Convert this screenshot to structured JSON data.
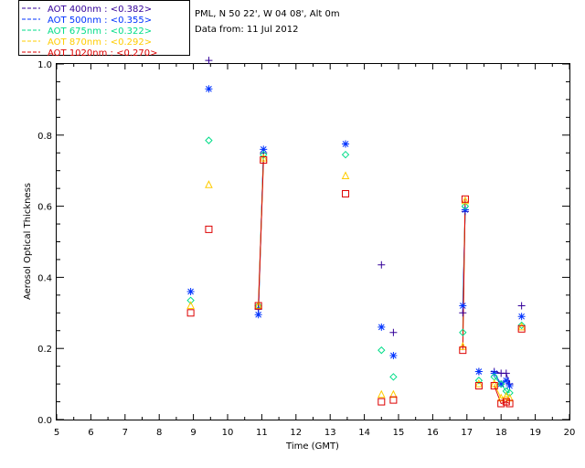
{
  "header": {
    "location": "PML, N 50 22', W 04 08', Alt 0m",
    "date": "Data from: 11 Jul 2012"
  },
  "chart_data": {
    "type": "scatter",
    "title": "",
    "xlabel": "Time (GMT)",
    "ylabel": "Aerosol Optical Thickness",
    "xlim": [
      5,
      20
    ],
    "ylim": [
      0,
      1.0
    ],
    "xticks": [
      5,
      6,
      7,
      8,
      9,
      10,
      11,
      12,
      13,
      14,
      15,
      16,
      17,
      18,
      19,
      20
    ],
    "yticks": [
      0.0,
      0.2,
      0.4,
      0.6,
      0.8,
      1.0
    ],
    "ytick_labels": [
      "0.0",
      "0.2",
      "0.4",
      "0.6",
      "0.8",
      "1.0"
    ],
    "grid": false,
    "legend_position": "top-left (outside plot)",
    "series": [
      {
        "name": "AOT  400nm : <0.382>",
        "color": "#330099",
        "marker": "plus",
        "points": [
          [
            9.45,
            1.01
          ],
          [
            10.9,
            0.31
          ],
          [
            11.05,
            0.75
          ],
          [
            13.45,
            0.775
          ],
          [
            14.5,
            0.435
          ],
          [
            14.85,
            0.245
          ],
          [
            16.88,
            0.3
          ],
          [
            16.95,
            0.585
          ],
          [
            17.35,
            0.135
          ],
          [
            17.8,
            0.135
          ],
          [
            18.0,
            0.13
          ],
          [
            18.15,
            0.13
          ],
          [
            18.25,
            0.1
          ],
          [
            18.6,
            0.32
          ]
        ]
      },
      {
        "name": "AOT  500nm : <0.355>",
        "color": "#0033ff",
        "marker": "asterisk",
        "points": [
          [
            8.92,
            0.36
          ],
          [
            9.45,
            0.93
          ],
          [
            10.9,
            0.295
          ],
          [
            11.05,
            0.76
          ],
          [
            13.45,
            0.775
          ],
          [
            14.5,
            0.26
          ],
          [
            14.85,
            0.18
          ],
          [
            16.88,
            0.32
          ],
          [
            16.95,
            0.59
          ],
          [
            17.35,
            0.135
          ],
          [
            17.8,
            0.13
          ],
          [
            18.0,
            0.1
          ],
          [
            18.15,
            0.11
          ],
          [
            18.25,
            0.095
          ],
          [
            18.6,
            0.29
          ]
        ]
      },
      {
        "name": "AOT  675nm : <0.322>",
        "color": "#00dd88",
        "marker": "diamond",
        "points": [
          [
            8.92,
            0.335
          ],
          [
            9.45,
            0.785
          ],
          [
            10.9,
            0.32
          ],
          [
            11.05,
            0.745
          ],
          [
            13.45,
            0.745
          ],
          [
            14.5,
            0.195
          ],
          [
            14.85,
            0.12
          ],
          [
            16.88,
            0.245
          ],
          [
            16.95,
            0.6
          ],
          [
            17.35,
            0.11
          ],
          [
            17.8,
            0.12
          ],
          [
            18.0,
            0.1
          ],
          [
            18.15,
            0.08
          ],
          [
            18.25,
            0.075
          ],
          [
            18.6,
            0.265
          ]
        ]
      },
      {
        "name": "AOT  870nm : <0.292>",
        "color": "#ffcc00",
        "marker": "triangle",
        "points": [
          [
            8.92,
            0.32
          ],
          [
            9.45,
            0.66
          ],
          [
            10.9,
            0.32
          ],
          [
            11.05,
            0.735
          ],
          [
            13.45,
            0.685
          ],
          [
            14.5,
            0.07
          ],
          [
            14.85,
            0.07
          ],
          [
            16.88,
            0.205
          ],
          [
            16.95,
            0.615
          ],
          [
            17.35,
            0.1
          ],
          [
            17.8,
            0.1
          ],
          [
            18.0,
            0.06
          ],
          [
            18.15,
            0.065
          ],
          [
            18.25,
            0.06
          ],
          [
            18.6,
            0.26
          ]
        ]
      },
      {
        "name": "AOT 1020nm : <0.270>",
        "color": "#dd0000",
        "marker": "square",
        "points": [
          [
            8.92,
            0.3
          ],
          [
            9.45,
            0.535
          ],
          [
            10.9,
            0.32
          ],
          [
            11.05,
            0.73
          ],
          [
            13.45,
            0.635
          ],
          [
            14.5,
            0.05
          ],
          [
            14.85,
            0.055
          ],
          [
            16.88,
            0.195
          ],
          [
            16.95,
            0.62
          ],
          [
            17.35,
            0.095
          ],
          [
            17.8,
            0.095
          ],
          [
            18.0,
            0.045
          ],
          [
            18.15,
            0.05
          ],
          [
            18.25,
            0.045
          ],
          [
            18.6,
            0.255
          ]
        ]
      }
    ],
    "connected_groups": [
      [
        10.9,
        11.05
      ],
      [
        16.88,
        16.95
      ],
      [
        17.8,
        18.0,
        18.15,
        18.25
      ]
    ]
  }
}
